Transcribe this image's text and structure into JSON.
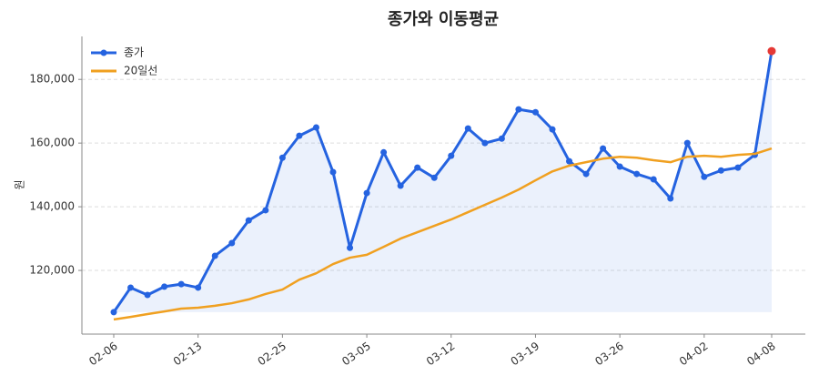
{
  "chart_data": {
    "type": "line",
    "title": "종가와 이동평균",
    "ylabel": "원",
    "categories": [
      "02-06",
      null,
      null,
      null,
      null,
      "02-13",
      null,
      null,
      null,
      null,
      "02-25",
      null,
      null,
      null,
      null,
      "03-05",
      null,
      null,
      null,
      null,
      "03-12",
      null,
      null,
      null,
      null,
      "03-19",
      null,
      null,
      null,
      null,
      "03-26",
      null,
      null,
      null,
      null,
      "04-02",
      null,
      null,
      null,
      "04-08"
    ],
    "series": [
      {
        "name": "종가",
        "color": "#2563e0",
        "markers": true,
        "fill": true,
        "values": [
          106900,
          114600,
          112300,
          114900,
          115700,
          114600,
          124600,
          128600,
          135700,
          138900,
          155400,
          162300,
          164900,
          150900,
          127100,
          144300,
          157100,
          146600,
          152300,
          149100,
          156000,
          164600,
          160000,
          161400,
          170600,
          169700,
          164300,
          154300,
          150300,
          158300,
          152600,
          150300,
          148600,
          142600,
          160000,
          149400,
          151400,
          152300,
          156300,
          188900
        ]
      },
      {
        "name": "20일선",
        "color": "#f0a020",
        "markers": false,
        "fill": false,
        "values": [
          104600,
          105400,
          106300,
          107100,
          108000,
          108300,
          108900,
          109700,
          110900,
          112600,
          114000,
          117100,
          119100,
          122000,
          124000,
          124900,
          127400,
          130000,
          132000,
          134000,
          136000,
          138300,
          140600,
          142900,
          145400,
          148300,
          151100,
          152900,
          154000,
          155100,
          155700,
          155400,
          154600,
          154000,
          155700,
          156000,
          155700,
          156300,
          156600,
          158300
        ]
      }
    ],
    "highlight_last_color": "#e53935",
    "ylim": [
      100000,
      193500
    ],
    "yticks": [
      {
        "value": 120000,
        "label": "120,000"
      },
      {
        "value": 140000,
        "label": "140,000"
      },
      {
        "value": 160000,
        "label": "160,000"
      },
      {
        "value": 180000,
        "label": "180,000"
      }
    ],
    "grid": true,
    "legend": "upper left"
  }
}
